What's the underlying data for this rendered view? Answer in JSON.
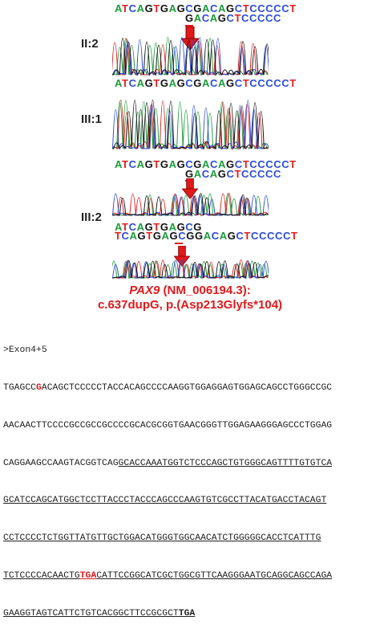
{
  "panels": [
    {
      "label": "II:2",
      "seq_top": "ATCAGTGAGCGACAGCTCCCCCT",
      "seq_bottom": "GACAGCTCCCCC",
      "has_arrow": true
    },
    {
      "label": "III:1",
      "seq_top": "ATCAGTGAGCGACAGCTCCCCCT",
      "seq_bottom": "",
      "has_arrow": false
    },
    {
      "label": "III:2",
      "seq_top": "ATCAGTGAGCGACAGCTCCCCCT",
      "seq_bottom": "GACAGCTCCCCC",
      "seq_third": "ATCAGTGAGCG",
      "seq_fourth": "TCAGTGAGCGGACAGCTCCCCCT",
      "has_arrow": true
    }
  ],
  "caption": {
    "gene": "PAX9",
    "accession": " (NM_006194.3):",
    "variant": "c.637dupG, p.(Asp213Glyfs*104)"
  },
  "exon": {
    "header": ">Exon4+5",
    "lines": [
      "TGAGCCGACAGCTCCCCCTACCACAGCCCCAAGGTGGAGGAGTGGAGCAGCCTGGGCCGC",
      "AACAACTTCCCCGCCGCCGCCCCGCACGCGGTGAACGGGTTGGAGAAGGGAGCCCTGGAG",
      "CAGGAAGCCAAGTACGGTCAGGCACCAAATGGTCTCCCAGCTGTGGGCAGTTTTGTGTCA",
      "GCATCCAGCATGGCTCCTTACCCTACCCAGCCCAAGTGTCGCCTTACATGACCTACAGT",
      "CCTCCCCTCTGGTTATGTTGCTGGACATGGGTGGCAACATCTGGGGGCACCTCATTTG",
      "TCTCCCCACAACTGTGACATTCCGGCATCGCTGGCGTTCAAGGGAATGCAGGCAGCCAGA",
      "GAAGGTAGTCATTCTGTCACGGCTTCCGCGCTTGA"
    ]
  }
}
